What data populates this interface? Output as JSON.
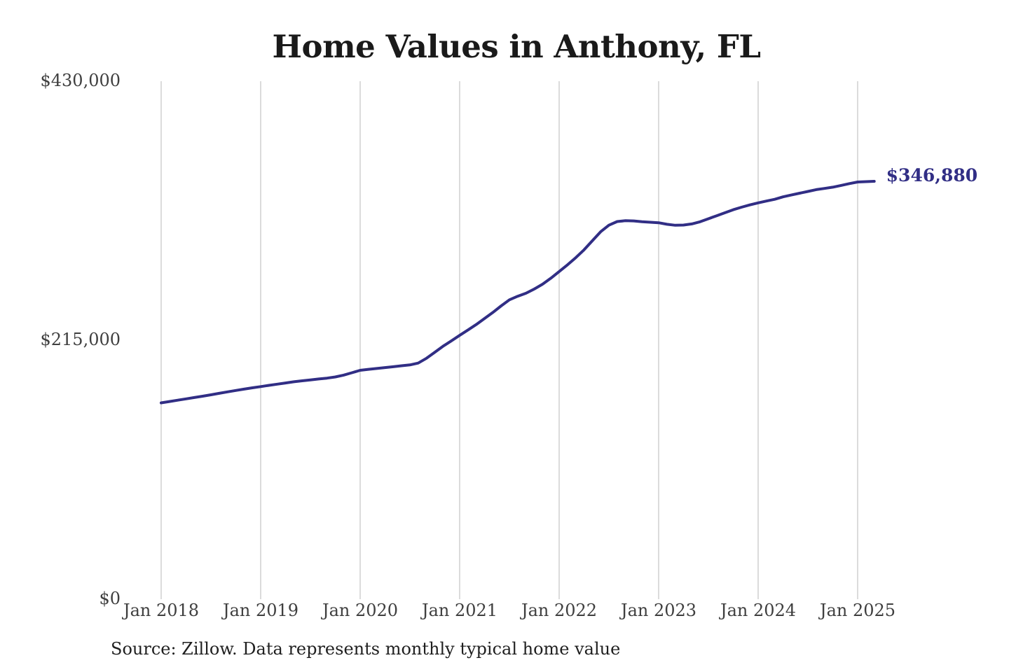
{
  "title": "Home Values in Anthony, FL",
  "end_label": "$346,880",
  "source_note": "Source: Zillow. Data represents monthly typical home value",
  "colors": {
    "line": "#312e85",
    "end_label": "#312e85",
    "grid": "#c8c8c8",
    "axis_text": "#3f3f3f",
    "title_text": "#1a1a1a",
    "source_text": "#1f1f1f",
    "background": "#ffffff"
  },
  "chart_data": {
    "type": "line",
    "title": "Home Values in Anthony, FL",
    "xlabel": "",
    "ylabel": "",
    "ylim": [
      0,
      430000
    ],
    "grid": "vertical-only",
    "legend": "none",
    "x_tick_labels": [
      "Jan 2018",
      "Jan 2019",
      "Jan 2020",
      "Jan 2021",
      "Jan 2022",
      "Jan 2023",
      "Jan 2024",
      "Jan 2025"
    ],
    "y_ticks": [
      {
        "label": "$430,000",
        "value": 430000
      },
      {
        "label": "$215,000",
        "value": 215000
      },
      {
        "label": "$0",
        "value": 0
      }
    ],
    "final_value": 346880,
    "final_value_label": "$346,880",
    "series": [
      {
        "name": "Monthly typical home value",
        "start_month": "2018-01",
        "end_month": "2025-03",
        "interval": "monthly",
        "values": [
          163000,
          164100,
          165200,
          166300,
          167400,
          168500,
          169700,
          170900,
          172100,
          173300,
          174400,
          175500,
          176500,
          177500,
          178500,
          179500,
          180500,
          181300,
          182000,
          182800,
          183500,
          184500,
          186000,
          188000,
          190000,
          190800,
          191500,
          192300,
          193000,
          193800,
          194500,
          196000,
          200000,
          205000,
          210000,
          214500,
          219000,
          223500,
          228000,
          233000,
          238000,
          243500,
          248500,
          251500,
          254000,
          257500,
          261500,
          266500,
          272000,
          277500,
          283500,
          290000,
          297500,
          305000,
          310500,
          313500,
          314200,
          314000,
          313400,
          312900,
          312500,
          311200,
          310400,
          310600,
          311500,
          313300,
          315800,
          318300,
          320800,
          323300,
          325400,
          327300,
          329000,
          330500,
          332000,
          334000,
          335500,
          337000,
          338500,
          340000,
          341000,
          342000,
          343500,
          345000,
          346300,
          346600,
          346880
        ]
      }
    ]
  }
}
